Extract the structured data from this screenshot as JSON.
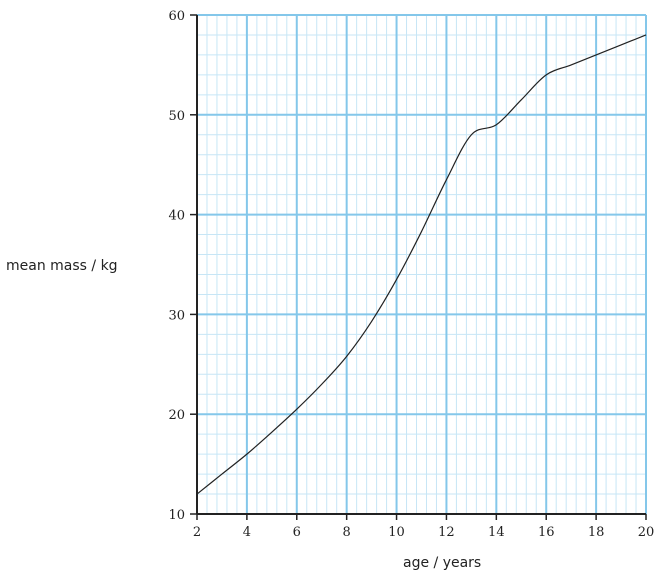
{
  "chart_data": {
    "type": "line",
    "xlabel": "age / years",
    "ylabel": "mean mass / kg",
    "xlim": [
      2,
      20
    ],
    "ylim": [
      10,
      60
    ],
    "x_ticks": [
      "2",
      "4",
      "6",
      "8",
      "10",
      "12",
      "14",
      "16",
      "18",
      "20"
    ],
    "y_ticks": [
      "10",
      "20",
      "30",
      "40",
      "50",
      "60"
    ],
    "grid": true,
    "colors": {
      "grid_major": "#84c7ea",
      "grid_minor": "#c7e6f6",
      "axis": "#222222",
      "line": "#222222"
    },
    "series": [
      {
        "x": [
          2,
          3,
          4,
          5,
          6,
          7,
          8,
          9,
          10,
          11,
          12,
          13,
          14,
          15,
          16,
          17,
          18,
          19,
          20
        ],
        "y": [
          12,
          14,
          16,
          18.2,
          20.5,
          23,
          25.8,
          29.3,
          33.5,
          38.3,
          43.5,
          48,
          49,
          51.5,
          54,
          55,
          56,
          57,
          58
        ]
      }
    ]
  }
}
